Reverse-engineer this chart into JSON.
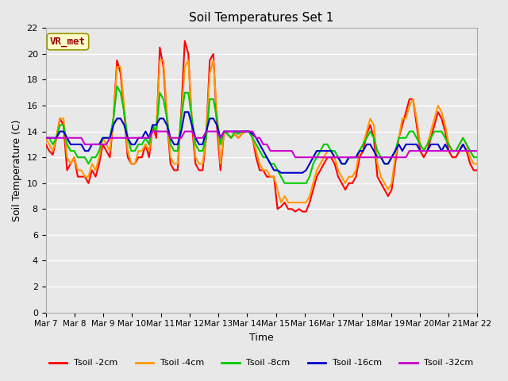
{
  "title": "Soil Temperatures Set 1",
  "xlabel": "Time",
  "ylabel": "Soil Temperature (C)",
  "ylim": [
    0,
    22
  ],
  "yticks": [
    0,
    2,
    4,
    6,
    8,
    10,
    12,
    14,
    16,
    18,
    20,
    22
  ],
  "xlim": [
    0,
    15
  ],
  "xtick_labels": [
    "Mar 7",
    "Mar 8",
    "Mar 9",
    "Mar 10",
    "Mar 11",
    "Mar 12",
    "Mar 13",
    "Mar 14",
    "Mar 15",
    "Mar 16",
    "Mar 17",
    "Mar 18",
    "Mar 19",
    "Mar 20",
    "Mar 21",
    "Mar 22"
  ],
  "annotation_text": "VR_met",
  "annotation_bg": "#ffffcc",
  "annotation_border": "#999900",
  "annotation_text_color": "#990000",
  "background_color": "#e8e8e8",
  "plot_bg": "#e8e8e8",
  "grid_color": "#ffffff",
  "legend_labels": [
    "Tsoil -2cm",
    "Tsoil -4cm",
    "Tsoil -8cm",
    "Tsoil -16cm",
    "Tsoil -32cm"
  ],
  "line_colors": [
    "#ff0000",
    "#ff9900",
    "#00cc00",
    "#0000cc",
    "#cc00cc"
  ],
  "line_width": 1.5,
  "t2cm": [
    13.0,
    12.5,
    12.2,
    13.5,
    15.0,
    14.5,
    11.0,
    11.5,
    12.0,
    10.5,
    10.5,
    10.5,
    10.0,
    11.0,
    10.5,
    11.5,
    13.0,
    12.5,
    12.0,
    15.0,
    19.5,
    18.5,
    15.5,
    12.0,
    11.5,
    11.5,
    12.0,
    12.0,
    13.0,
    12.0,
    14.5,
    13.5,
    20.5,
    19.0,
    15.0,
    11.5,
    11.0,
    11.0,
    15.5,
    21.0,
    20.0,
    14.5,
    11.5,
    11.0,
    11.0,
    13.5,
    19.5,
    20.0,
    14.5,
    11.0,
    14.0,
    13.8,
    13.5,
    13.8,
    13.5,
    13.8,
    14.0,
    14.0,
    13.5,
    12.0,
    11.0,
    11.0,
    10.5,
    10.5,
    10.5,
    8.0,
    8.2,
    8.5,
    8.0,
    8.0,
    7.8,
    8.0,
    7.8,
    7.8,
    8.5,
    9.5,
    10.5,
    11.0,
    11.5,
    12.0,
    12.0,
    11.5,
    10.5,
    10.0,
    9.5,
    10.0,
    10.0,
    10.5,
    12.0,
    12.5,
    13.8,
    14.5,
    13.5,
    10.5,
    10.0,
    9.5,
    9.0,
    9.5,
    11.5,
    13.5,
    14.5,
    15.5,
    16.5,
    16.5,
    14.5,
    12.5,
    12.0,
    12.5,
    13.5,
    14.5,
    15.5,
    15.0,
    14.0,
    12.5,
    12.0,
    12.0,
    12.5,
    13.0,
    12.5,
    11.5,
    11.0,
    11.0
  ],
  "t4cm": [
    13.5,
    13.0,
    12.5,
    13.5,
    15.0,
    15.0,
    12.0,
    11.5,
    12.0,
    11.0,
    11.0,
    10.5,
    10.5,
    11.5,
    11.0,
    12.0,
    13.5,
    13.0,
    12.5,
    15.0,
    19.0,
    19.0,
    16.0,
    12.5,
    11.5,
    11.5,
    12.5,
    12.5,
    13.0,
    12.5,
    14.5,
    14.0,
    19.5,
    19.5,
    15.5,
    12.0,
    11.5,
    11.5,
    15.0,
    19.0,
    19.5,
    15.0,
    12.0,
    11.5,
    11.5,
    13.5,
    18.5,
    19.5,
    15.5,
    11.5,
    14.0,
    13.8,
    13.5,
    13.8,
    13.5,
    13.8,
    14.0,
    14.0,
    13.5,
    12.5,
    11.5,
    11.0,
    11.0,
    10.5,
    10.5,
    9.5,
    8.5,
    9.0,
    8.5,
    8.5,
    8.5,
    8.5,
    8.5,
    8.5,
    9.0,
    10.0,
    11.0,
    11.5,
    12.0,
    12.5,
    12.5,
    12.0,
    11.0,
    10.5,
    10.0,
    10.5,
    10.5,
    11.0,
    12.5,
    13.0,
    14.0,
    15.0,
    14.5,
    11.5,
    10.5,
    10.0,
    9.5,
    10.0,
    12.0,
    13.5,
    15.0,
    15.0,
    16.0,
    16.5,
    15.0,
    13.0,
    12.5,
    13.0,
    14.0,
    15.0,
    16.0,
    15.5,
    14.5,
    13.0,
    12.5,
    12.5,
    13.0,
    13.5,
    13.0,
    12.0,
    11.5,
    11.5
  ],
  "t8cm": [
    13.5,
    13.5,
    13.0,
    13.5,
    14.5,
    14.5,
    13.0,
    12.5,
    12.5,
    12.0,
    12.0,
    12.0,
    11.5,
    12.0,
    12.0,
    12.5,
    13.5,
    13.5,
    13.5,
    15.0,
    17.5,
    17.0,
    15.5,
    13.5,
    12.5,
    12.5,
    13.0,
    13.0,
    13.5,
    13.0,
    14.5,
    14.0,
    17.0,
    16.5,
    15.0,
    13.0,
    12.5,
    12.5,
    15.0,
    17.0,
    17.0,
    15.0,
    13.0,
    12.5,
    12.5,
    13.5,
    16.5,
    16.5,
    15.0,
    13.0,
    14.0,
    13.8,
    13.5,
    14.0,
    13.8,
    14.0,
    14.0,
    14.0,
    13.5,
    13.0,
    12.5,
    12.0,
    12.0,
    11.5,
    11.5,
    11.0,
    10.5,
    10.0,
    10.0,
    10.0,
    10.0,
    10.0,
    10.0,
    10.0,
    10.5,
    11.5,
    12.0,
    12.5,
    13.0,
    13.0,
    12.5,
    12.5,
    12.0,
    11.5,
    11.5,
    12.0,
    12.0,
    12.0,
    12.5,
    13.0,
    13.5,
    14.0,
    13.5,
    12.5,
    12.0,
    11.5,
    11.5,
    12.0,
    12.5,
    13.5,
    13.5,
    13.5,
    14.0,
    14.0,
    13.5,
    13.0,
    12.5,
    13.0,
    13.5,
    14.0,
    14.0,
    14.0,
    13.5,
    13.0,
    12.5,
    12.5,
    13.0,
    13.5,
    13.0,
    12.5,
    12.0,
    12.0
  ],
  "t16cm": [
    13.5,
    13.5,
    13.5,
    13.5,
    14.0,
    14.0,
    13.5,
    13.0,
    13.0,
    13.0,
    13.0,
    12.5,
    12.5,
    13.0,
    13.0,
    13.0,
    13.5,
    13.5,
    13.5,
    14.5,
    15.0,
    15.0,
    14.5,
    13.5,
    13.0,
    13.0,
    13.5,
    13.5,
    14.0,
    13.5,
    14.5,
    14.5,
    15.0,
    15.0,
    14.5,
    13.5,
    13.0,
    13.0,
    14.0,
    15.5,
    15.5,
    14.5,
    13.5,
    13.0,
    13.0,
    14.0,
    15.0,
    15.0,
    14.5,
    13.5,
    14.0,
    14.0,
    14.0,
    14.0,
    14.0,
    14.0,
    14.0,
    14.0,
    13.8,
    13.5,
    13.0,
    12.5,
    12.0,
    11.5,
    11.0,
    11.0,
    10.8,
    10.8,
    10.8,
    10.8,
    10.8,
    10.8,
    10.8,
    11.0,
    11.5,
    12.0,
    12.5,
    12.5,
    12.5,
    12.5,
    12.5,
    12.0,
    12.0,
    11.5,
    11.5,
    12.0,
    12.0,
    12.0,
    12.5,
    12.5,
    13.0,
    13.0,
    12.5,
    12.0,
    12.0,
    11.5,
    11.5,
    12.0,
    12.5,
    13.0,
    12.5,
    13.0,
    13.0,
    13.0,
    13.0,
    12.5,
    12.5,
    12.5,
    13.0,
    13.0,
    13.0,
    12.5,
    13.0,
    12.5,
    12.5,
    12.5,
    12.5,
    13.0,
    12.5,
    12.5,
    12.5,
    12.5
  ],
  "t32cm": [
    13.5,
    13.5,
    13.5,
    13.5,
    13.5,
    13.5,
    13.5,
    13.5,
    13.5,
    13.5,
    13.5,
    13.0,
    13.0,
    13.0,
    13.0,
    13.0,
    13.0,
    13.0,
    13.5,
    13.5,
    13.5,
    13.5,
    13.5,
    13.5,
    13.5,
    13.5,
    13.5,
    13.5,
    13.5,
    13.5,
    14.0,
    14.0,
    14.0,
    14.0,
    14.0,
    13.5,
    13.5,
    13.5,
    13.5,
    14.0,
    14.0,
    14.0,
    13.5,
    13.5,
    13.5,
    14.0,
    14.0,
    14.0,
    14.0,
    13.5,
    14.0,
    14.0,
    14.0,
    14.0,
    14.0,
    14.0,
    14.0,
    14.0,
    14.0,
    13.5,
    13.5,
    13.0,
    13.0,
    12.5,
    12.5,
    12.5,
    12.5,
    12.5,
    12.5,
    12.5,
    12.0,
    12.0,
    12.0,
    12.0,
    12.0,
    12.0,
    12.0,
    12.0,
    12.0,
    12.0,
    12.0,
    12.0,
    12.0,
    12.0,
    12.0,
    12.0,
    12.0,
    12.0,
    12.0,
    12.0,
    12.0,
    12.0,
    12.0,
    12.0,
    12.0,
    12.0,
    12.0,
    12.0,
    12.0,
    12.0,
    12.0,
    12.0,
    12.5,
    12.5,
    12.5,
    12.5,
    12.5,
    12.5,
    12.5,
    12.5,
    12.5,
    12.5,
    12.5,
    12.5,
    12.5,
    12.5,
    12.5,
    12.5,
    12.5,
    12.5,
    12.5,
    12.5
  ]
}
